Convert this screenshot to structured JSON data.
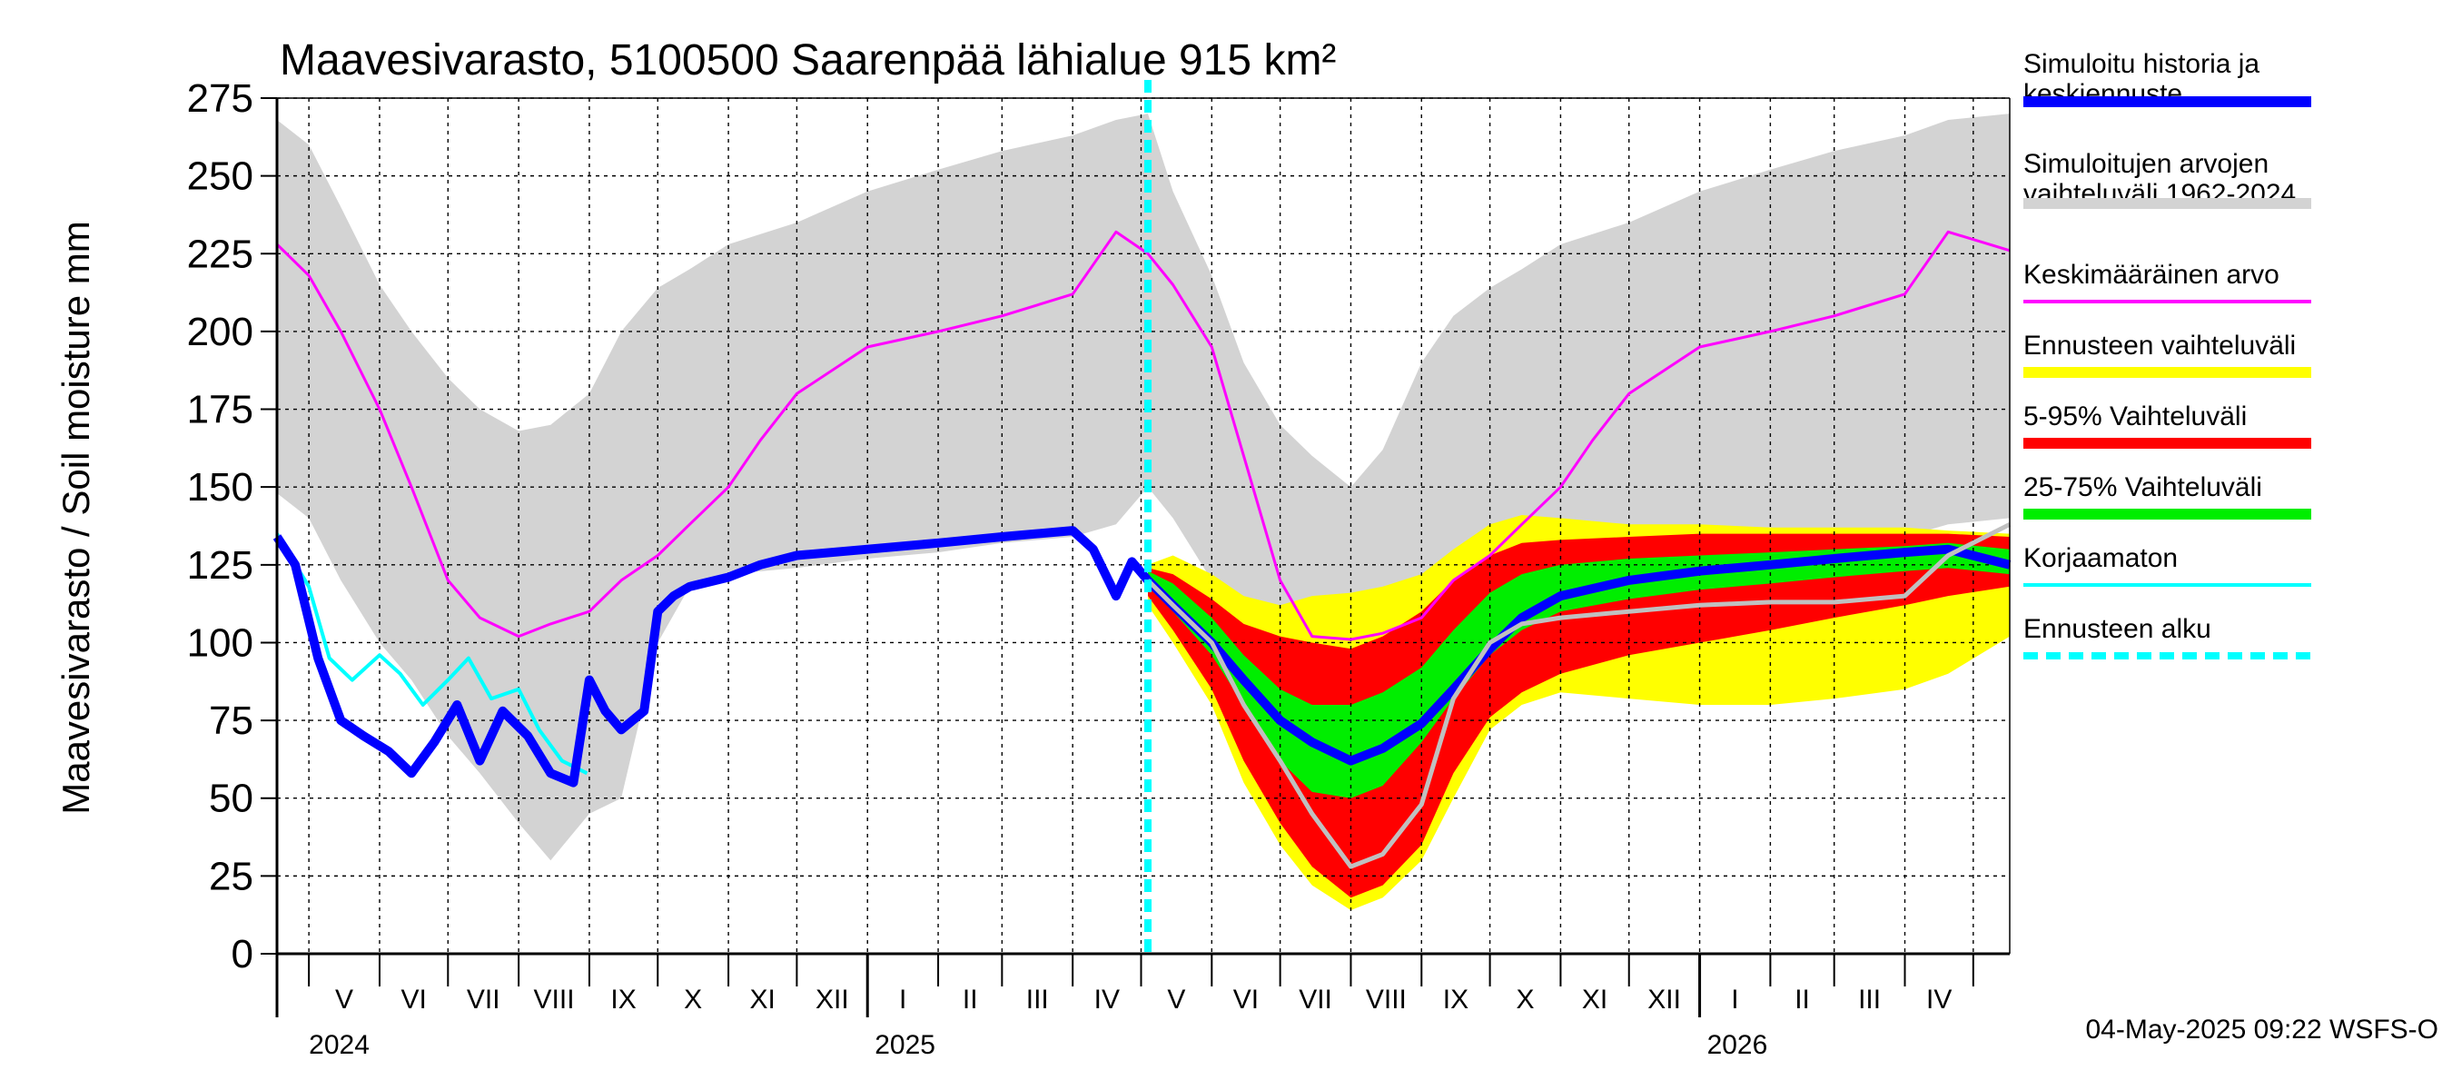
{
  "chart_data": {
    "type": "area",
    "title": "Maavesivarasto, 5100500 Saarenpää lähialue 915 km²",
    "ylabel": "Maavesivarasto / Soil moisture   mm",
    "xlabel": "",
    "ylim": [
      0,
      275
    ],
    "yticks": [
      0,
      25,
      50,
      75,
      100,
      125,
      150,
      175,
      200,
      225,
      250,
      275
    ],
    "x_range": [
      "2024-04-17",
      "2026-05-17"
    ],
    "forecast_start": "2025-05-04",
    "grid": true,
    "months": [
      {
        "label": "V",
        "start": "2024-05-01"
      },
      {
        "label": "VI",
        "start": "2024-06-01"
      },
      {
        "label": "VII",
        "start": "2024-07-01"
      },
      {
        "label": "VIII",
        "start": "2024-08-01"
      },
      {
        "label": "IX",
        "start": "2024-09-01"
      },
      {
        "label": "X",
        "start": "2024-10-01"
      },
      {
        "label": "XI",
        "start": "2024-11-01"
      },
      {
        "label": "XII",
        "start": "2024-12-01"
      },
      {
        "label": "I",
        "start": "2025-01-01"
      },
      {
        "label": "II",
        "start": "2025-02-01"
      },
      {
        "label": "III",
        "start": "2025-03-01"
      },
      {
        "label": "IV",
        "start": "2025-04-01"
      },
      {
        "label": "V",
        "start": "2025-05-01"
      },
      {
        "label": "VI",
        "start": "2025-06-01"
      },
      {
        "label": "VII",
        "start": "2025-07-01"
      },
      {
        "label": "VIII",
        "start": "2025-08-01"
      },
      {
        "label": "IX",
        "start": "2025-09-01"
      },
      {
        "label": "X",
        "start": "2025-10-01"
      },
      {
        "label": "XI",
        "start": "2025-11-01"
      },
      {
        "label": "XII",
        "start": "2025-12-01"
      },
      {
        "label": "I",
        "start": "2026-01-01"
      },
      {
        "label": "II",
        "start": "2026-02-01"
      },
      {
        "label": "III",
        "start": "2026-03-01"
      },
      {
        "label": "IV",
        "start": "2026-04-01"
      },
      {
        "label": "",
        "start": "2026-05-01"
      }
    ],
    "years": [
      {
        "label": "2024",
        "start": "2024-05-01"
      },
      {
        "label": "2025",
        "start": "2025-01-01"
      },
      {
        "label": "2026",
        "start": "2026-01-01"
      }
    ],
    "series": [
      {
        "name": "Simuloitujen arvojen vaihteluväli 1962-2024",
        "kind": "band",
        "color": "#d3d3d3",
        "x": [
          "2024-04-17",
          "2024-05-01",
          "2024-05-15",
          "2024-06-01",
          "2024-06-15",
          "2024-07-01",
          "2024-07-15",
          "2024-08-01",
          "2024-08-15",
          "2024-09-01",
          "2024-09-15",
          "2024-10-01",
          "2024-10-15",
          "2024-11-01",
          "2024-12-01",
          "2025-01-01",
          "2025-02-01",
          "2025-03-01",
          "2025-04-01",
          "2025-04-20",
          "2025-05-04",
          "2025-05-15",
          "2025-06-01",
          "2025-06-15",
          "2025-07-01",
          "2025-07-15",
          "2025-08-01",
          "2025-08-15",
          "2025-09-01",
          "2025-09-15",
          "2025-10-01",
          "2025-10-15",
          "2025-11-01",
          "2025-12-01",
          "2026-01-01",
          "2026-02-01",
          "2026-03-01",
          "2026-04-01",
          "2026-04-20",
          "2026-05-17"
        ],
        "lower": [
          148,
          140,
          120,
          100,
          88,
          70,
          58,
          42,
          30,
          45,
          50,
          100,
          118,
          122,
          124,
          127,
          129,
          132,
          134,
          138,
          150,
          140,
          120,
          100,
          80,
          70,
          55,
          60,
          90,
          108,
          115,
          118,
          122,
          124,
          127,
          129,
          132,
          134,
          138,
          140
        ],
        "upper": [
          268,
          260,
          240,
          215,
          200,
          185,
          175,
          168,
          170,
          180,
          200,
          214,
          220,
          228,
          235,
          245,
          252,
          258,
          263,
          268,
          270,
          245,
          218,
          190,
          170,
          160,
          150,
          162,
          190,
          205,
          214,
          220,
          228,
          235,
          245,
          252,
          258,
          263,
          268,
          270
        ]
      },
      {
        "name": "Keskimääräinen arvo",
        "kind": "line",
        "color": "#ff00ff",
        "x": [
          "2024-04-17",
          "2024-05-01",
          "2024-05-15",
          "2024-06-01",
          "2024-06-15",
          "2024-07-01",
          "2024-07-15",
          "2024-08-01",
          "2024-08-15",
          "2024-09-01",
          "2024-09-15",
          "2024-10-01",
          "2024-10-15",
          "2024-11-01",
          "2024-11-15",
          "2024-12-01",
          "2025-01-01",
          "2025-02-01",
          "2025-03-01",
          "2025-04-01",
          "2025-04-20",
          "2025-05-04",
          "2025-05-15",
          "2025-06-01",
          "2025-06-15",
          "2025-07-01",
          "2025-07-15",
          "2025-08-01",
          "2025-08-15",
          "2025-09-01",
          "2025-09-15",
          "2025-10-01",
          "2025-10-15",
          "2025-11-01",
          "2025-11-15",
          "2025-12-01",
          "2026-01-01",
          "2026-02-01",
          "2026-03-01",
          "2026-04-01",
          "2026-04-20",
          "2026-05-17"
        ],
        "values": [
          228,
          218,
          200,
          175,
          150,
          120,
          108,
          102,
          106,
          110,
          120,
          128,
          138,
          150,
          165,
          180,
          195,
          200,
          205,
          212,
          232,
          225,
          215,
          195,
          160,
          120,
          102,
          101,
          103,
          108,
          120,
          128,
          138,
          150,
          165,
          180,
          195,
          200,
          205,
          212,
          232,
          226
        ]
      },
      {
        "name": "Ennusteen vaihteluväli",
        "kind": "band",
        "color": "#ffff00",
        "x": [
          "2025-05-04",
          "2025-05-15",
          "2025-06-01",
          "2025-06-15",
          "2025-07-01",
          "2025-07-15",
          "2025-08-01",
          "2025-08-15",
          "2025-09-01",
          "2025-09-15",
          "2025-10-01",
          "2025-10-15",
          "2025-11-01",
          "2025-12-01",
          "2026-01-01",
          "2026-02-01",
          "2026-03-01",
          "2026-04-01",
          "2026-04-20",
          "2026-05-17"
        ],
        "lower": [
          112,
          100,
          80,
          55,
          35,
          22,
          14,
          18,
          30,
          50,
          72,
          80,
          84,
          82,
          80,
          80,
          82,
          85,
          90,
          102
        ],
        "upper": [
          125,
          128,
          122,
          115,
          112,
          115,
          116,
          118,
          122,
          130,
          138,
          141,
          140,
          138,
          138,
          137,
          137,
          137,
          136,
          135
        ]
      },
      {
        "name": "5-95% Vaihteluväli",
        "kind": "band",
        "color": "#ff0000",
        "x": [
          "2025-05-04",
          "2025-05-15",
          "2025-06-01",
          "2025-06-15",
          "2025-07-01",
          "2025-07-15",
          "2025-08-01",
          "2025-08-15",
          "2025-09-01",
          "2025-09-15",
          "2025-10-01",
          "2025-10-15",
          "2025-11-01",
          "2025-12-01",
          "2026-01-01",
          "2026-02-01",
          "2026-03-01",
          "2026-04-01",
          "2026-04-20",
          "2026-05-17"
        ],
        "lower": [
          115,
          104,
          85,
          62,
          42,
          28,
          18,
          22,
          35,
          58,
          76,
          84,
          90,
          96,
          100,
          104,
          108,
          112,
          115,
          118
        ],
        "upper": [
          124,
          122,
          114,
          106,
          102,
          100,
          98,
          102,
          110,
          120,
          128,
          132,
          133,
          134,
          135,
          135,
          135,
          135,
          135,
          134
        ]
      },
      {
        "name": "25-75% Vaihteluväli",
        "kind": "band",
        "color": "#00ee00",
        "x": [
          "2025-05-04",
          "2025-05-15",
          "2025-06-01",
          "2025-06-15",
          "2025-07-01",
          "2025-07-15",
          "2025-08-01",
          "2025-08-15",
          "2025-09-01",
          "2025-09-15",
          "2025-10-01",
          "2025-10-15",
          "2025-11-01",
          "2025-12-01",
          "2026-01-01",
          "2026-02-01",
          "2026-03-01",
          "2026-04-01",
          "2026-04-20",
          "2026-05-17"
        ],
        "lower": [
          118,
          110,
          96,
          80,
          62,
          52,
          50,
          54,
          68,
          82,
          96,
          104,
          110,
          114,
          117,
          119,
          121,
          123,
          124,
          122
        ],
        "upper": [
          123,
          119,
          108,
          96,
          85,
          80,
          80,
          84,
          92,
          104,
          116,
          122,
          125,
          127,
          128,
          129,
          130,
          131,
          132,
          130
        ]
      },
      {
        "name": "Korjaamaton",
        "kind": "line",
        "color": "#00ffff",
        "x": [
          "2024-04-17",
          "2024-05-01",
          "2024-05-10",
          "2024-05-20",
          "2024-06-01",
          "2024-06-10",
          "2024-06-20",
          "2024-07-01",
          "2024-07-10",
          "2024-07-20",
          "2024-08-01",
          "2024-08-10",
          "2024-08-20",
          "2024-08-31"
        ],
        "values": [
          135,
          118,
          95,
          88,
          96,
          90,
          80,
          88,
          95,
          82,
          85,
          72,
          62,
          58
        ]
      },
      {
        "name": "Simuloitu historia ja keskiennuste",
        "kind": "line",
        "color": "#0000ff",
        "x": [
          "2024-04-17",
          "2024-04-25",
          "2024-05-05",
          "2024-05-15",
          "2024-05-25",
          "2024-06-05",
          "2024-06-15",
          "2024-06-25",
          "2024-07-05",
          "2024-07-15",
          "2024-07-25",
          "2024-08-05",
          "2024-08-15",
          "2024-08-25",
          "2024-09-01",
          "2024-09-08",
          "2024-09-15",
          "2024-09-25",
          "2024-10-01",
          "2024-10-08",
          "2024-10-15",
          "2024-11-01",
          "2024-11-15",
          "2024-12-01",
          "2025-01-01",
          "2025-02-01",
          "2025-03-01",
          "2025-04-01",
          "2025-04-10",
          "2025-04-20",
          "2025-04-27",
          "2025-05-04",
          "2025-05-15",
          "2025-06-01",
          "2025-06-15",
          "2025-07-01",
          "2025-07-15",
          "2025-08-01",
          "2025-08-15",
          "2025-09-01",
          "2025-09-15",
          "2025-10-01",
          "2025-10-15",
          "2025-11-01",
          "2025-12-01",
          "2026-01-01",
          "2026-02-01",
          "2026-03-01",
          "2026-04-01",
          "2026-04-20",
          "2026-05-17"
        ],
        "values": [
          134,
          125,
          95,
          75,
          70,
          65,
          58,
          68,
          80,
          62,
          78,
          70,
          58,
          55,
          88,
          78,
          72,
          78,
          110,
          115,
          118,
          121,
          125,
          128,
          130,
          132,
          134,
          136,
          130,
          115,
          126,
          120,
          112,
          100,
          88,
          75,
          68,
          62,
          66,
          74,
          85,
          98,
          108,
          115,
          120,
          123,
          125,
          127,
          129,
          130,
          125
        ]
      },
      {
        "name": "Mediaani (harmaa)",
        "kind": "line",
        "color": "#c0c0c0",
        "legend": false,
        "x": [
          "2025-05-04",
          "2025-05-15",
          "2025-06-01",
          "2025-06-15",
          "2025-07-01",
          "2025-07-15",
          "2025-08-01",
          "2025-08-15",
          "2025-09-01",
          "2025-09-15",
          "2025-10-01",
          "2025-10-15",
          "2025-11-01",
          "2025-12-01",
          "2026-01-01",
          "2026-02-01",
          "2026-03-01",
          "2026-04-01",
          "2026-04-20",
          "2026-05-17"
        ],
        "values": [
          120,
          112,
          100,
          80,
          62,
          45,
          28,
          32,
          48,
          82,
          100,
          106,
          108,
          110,
          112,
          113,
          113,
          115,
          128,
          138
        ]
      }
    ],
    "legend": [
      {
        "text": [
          "Simuloitu historia ja",
          "keskiennuste"
        ],
        "color": "#0000ff",
        "style": "thick"
      },
      {
        "text": [
          "Simuloitujen arvojen",
          "vaihteluväli 1962-2024"
        ],
        "color": "#d3d3d3",
        "style": "thick"
      },
      {
        "text": [
          "Keskimääräinen arvo"
        ],
        "color": "#ff00ff",
        "style": "thin"
      },
      {
        "text": [
          "Ennusteen vaihteluväli"
        ],
        "color": "#ffff00",
        "style": "thick"
      },
      {
        "text": [
          "5-95% Vaihteluväli"
        ],
        "color": "#ff0000",
        "style": "thick"
      },
      {
        "text": [
          "25-75% Vaihteluväli"
        ],
        "color": "#00ee00",
        "style": "thick"
      },
      {
        "text": [
          "Korjaamaton"
        ],
        "color": "#00ffff",
        "style": "thin"
      },
      {
        "text": [
          "Ennusteen alku"
        ],
        "color": "#00ffff",
        "style": "dashed"
      }
    ],
    "footer": "04-May-2025 09:22 WSFS-O"
  }
}
